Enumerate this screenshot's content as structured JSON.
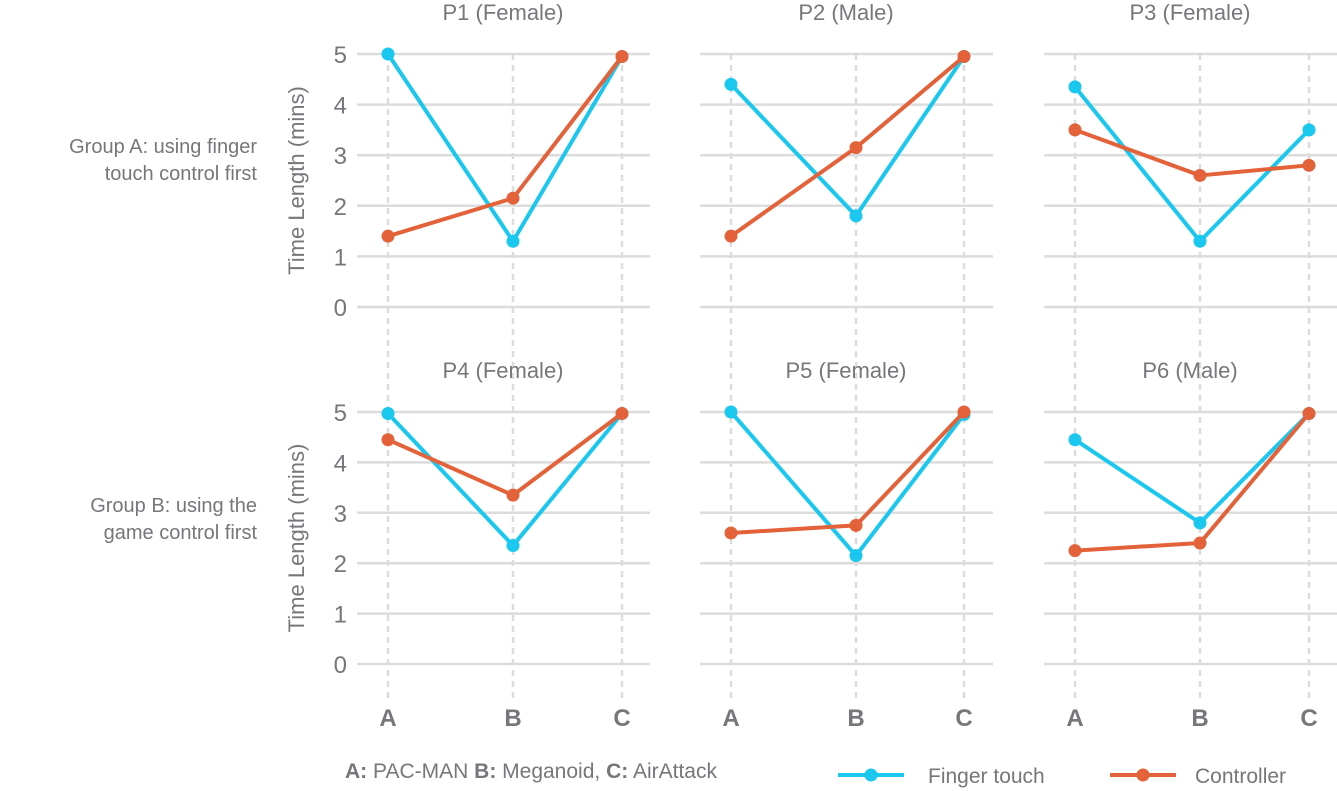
{
  "chart_data": {
    "type": "line",
    "title": "",
    "ylabel": "Time Length (mins)",
    "ylim": [
      0,
      5
    ],
    "yticks": [
      0,
      1,
      2,
      3,
      4,
      5
    ],
    "categories": [
      "A",
      "B",
      "C"
    ],
    "grid": true,
    "legend_position": "bottom",
    "row_labels": [
      [
        "Group A: using finger",
        "touch control first"
      ],
      [
        "Group B: using the",
        "game control first"
      ]
    ],
    "category_legend": [
      {
        "key": "A",
        "text": "PAC-MAN"
      },
      {
        "key": "B",
        "text": "Meganoid,"
      },
      {
        "key": "C",
        "text": "AirAttack"
      }
    ],
    "series_legend": [
      {
        "name": "Finger touch",
        "color": "#1ac8ef"
      },
      {
        "name": "Controller",
        "color": "#e4623a"
      }
    ],
    "panels": [
      {
        "title": "P1 (Female)",
        "row": 0,
        "col": 0,
        "series": [
          {
            "name": "Finger touch",
            "values": [
              5.0,
              1.3,
              4.95
            ]
          },
          {
            "name": "Controller",
            "values": [
              1.4,
              2.15,
              4.95
            ]
          }
        ]
      },
      {
        "title": "P2 (Male)",
        "row": 0,
        "col": 1,
        "series": [
          {
            "name": "Finger touch",
            "values": [
              4.4,
              1.8,
              4.95
            ]
          },
          {
            "name": "Controller",
            "values": [
              1.4,
              3.15,
              4.95
            ]
          }
        ]
      },
      {
        "title": "P3 (Female)",
        "row": 0,
        "col": 2,
        "series": [
          {
            "name": "Finger touch",
            "values": [
              4.35,
              1.3,
              3.5
            ]
          },
          {
            "name": "Controller",
            "values": [
              3.5,
              2.6,
              2.8
            ]
          }
        ]
      },
      {
        "title": "P4 (Female)",
        "row": 1,
        "col": 0,
        "series": [
          {
            "name": "Finger touch",
            "values": [
              4.97,
              2.35,
              4.97
            ]
          },
          {
            "name": "Controller",
            "values": [
              4.45,
              3.35,
              4.97
            ]
          }
        ]
      },
      {
        "title": "P5 (Female)",
        "row": 1,
        "col": 1,
        "series": [
          {
            "name": "Finger touch",
            "values": [
              5.0,
              2.15,
              4.95
            ]
          },
          {
            "name": "Controller",
            "values": [
              2.6,
              2.75,
              5.0
            ]
          }
        ]
      },
      {
        "title": "P6 (Male)",
        "row": 1,
        "col": 2,
        "series": [
          {
            "name": "Finger touch",
            "values": [
              4.45,
              2.8,
              4.97
            ]
          },
          {
            "name": "Controller",
            "values": [
              2.25,
              2.4,
              4.97
            ]
          }
        ]
      }
    ]
  },
  "colors": {
    "finger": "#1ac8ef",
    "controller": "#e4623a",
    "grid": "#dcdcdc",
    "text": "#77767b"
  }
}
